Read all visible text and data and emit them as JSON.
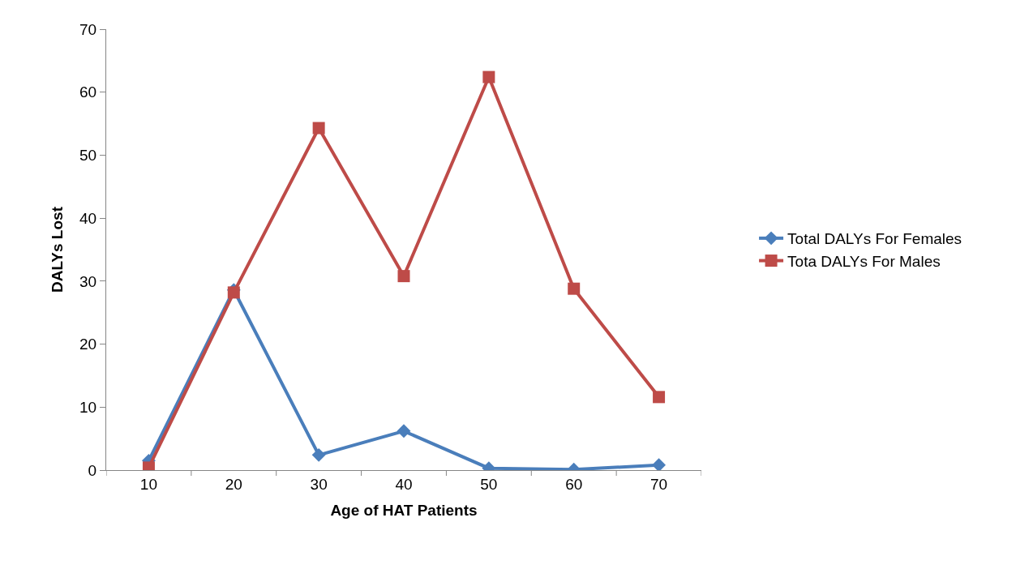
{
  "chart_data": {
    "type": "line",
    "xlabel": "Age of HAT Patients",
    "ylabel": "DALYs Lost",
    "categories": [
      "10",
      "20",
      "30",
      "40",
      "50",
      "60",
      "70"
    ],
    "series": [
      {
        "name": "Total DALYs For Females",
        "color": "#4a7ebb",
        "marker": "diamond",
        "values": [
          1.5,
          28.6,
          2.4,
          6.2,
          0.3,
          0.1,
          0.8
        ]
      },
      {
        "name": "Tota DALYs For Males",
        "color": "#be4b48",
        "marker": "square",
        "values": [
          0.4,
          28.2,
          54.3,
          30.8,
          62.4,
          28.8,
          11.6
        ]
      }
    ],
    "ylim": [
      0,
      70
    ],
    "yticks": [
      0,
      10,
      20,
      30,
      40,
      50,
      60,
      70
    ],
    "legend": "right"
  }
}
